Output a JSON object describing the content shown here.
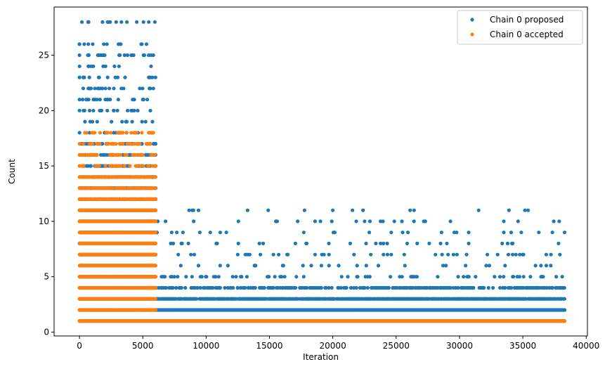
{
  "chart_data": {
    "type": "scatter",
    "title": "",
    "xlabel": "Iteration",
    "ylabel": "Count",
    "xlim": [
      -2000,
      40100
    ],
    "ylim": [
      -0.35,
      29.35
    ],
    "xticks": [
      0,
      5000,
      10000,
      15000,
      20000,
      25000,
      30000,
      35000,
      40000
    ],
    "yticks": [
      0,
      5,
      10,
      15,
      20,
      25
    ],
    "legend_position": "top-right",
    "grid": false,
    "series": [
      {
        "name": "Chain 0 proposed",
        "color": "#1f77b4",
        "description_levels": [
          {
            "x_range": [
              0,
              6000
            ],
            "y_values": [
              1,
              2,
              3,
              4,
              5,
              6,
              7,
              8,
              9,
              10,
              11,
              12,
              13,
              14,
              15,
              16,
              17,
              18,
              19,
              20,
              21,
              22,
              23,
              24,
              25,
              26,
              28
            ]
          },
          {
            "x_range": [
              6000,
              38300
            ],
            "y_values": [
              1,
              2,
              3,
              4,
              5,
              6,
              7,
              8,
              9,
              10,
              11
            ]
          }
        ],
        "points": [
          [
            700,
            28
          ],
          [
            0,
            26
          ],
          [
            700,
            26
          ],
          [
            0,
            25
          ],
          [
            700,
            24
          ],
          [
            0,
            23
          ],
          [
            300,
            23
          ],
          [
            3600,
            23
          ],
          [
            5600,
            23
          ],
          [
            300,
            22
          ],
          [
            700,
            22
          ],
          [
            900,
            22
          ],
          [
            5600,
            22
          ],
          [
            0,
            21
          ],
          [
            2200,
            21
          ],
          [
            4200,
            21
          ],
          [
            5000,
            21
          ],
          [
            0,
            20
          ],
          [
            400,
            20
          ],
          [
            800,
            20
          ],
          [
            1600,
            20
          ],
          [
            2200,
            20
          ],
          [
            2700,
            20
          ],
          [
            3000,
            20
          ],
          [
            4200,
            20
          ],
          [
            4600,
            20
          ],
          [
            5600,
            20
          ],
          [
            9000,
            11
          ],
          [
            9400,
            11
          ],
          [
            18600,
            10
          ],
          [
            33500,
            10
          ],
          [
            9500,
            9
          ],
          [
            33500,
            9
          ],
          [
            8600,
            8
          ],
          [
            10800,
            8
          ],
          [
            14200,
            8
          ],
          [
            14500,
            8
          ],
          [
            23400,
            8
          ],
          [
            24000,
            8
          ],
          [
            24300,
            8
          ],
          [
            29000,
            8
          ],
          [
            33800,
            8
          ],
          [
            34200,
            8
          ],
          [
            7800,
            7
          ],
          [
            8800,
            7
          ],
          [
            13100,
            7
          ],
          [
            18600,
            7
          ],
          [
            19300,
            7
          ],
          [
            19700,
            7
          ],
          [
            23000,
            7
          ],
          [
            24000,
            7
          ],
          [
            28100,
            7
          ],
          [
            29100,
            7
          ],
          [
            29800,
            7
          ],
          [
            32200,
            7
          ],
          [
            34200,
            7
          ],
          [
            8000,
            6
          ],
          [
            9400,
            6
          ],
          [
            13900,
            6
          ],
          [
            16100,
            6
          ],
          [
            18300,
            6
          ],
          [
            19100,
            6
          ],
          [
            23600,
            6
          ],
          [
            28700,
            6
          ],
          [
            33600,
            6
          ],
          [
            36000,
            6
          ],
          [
            7200,
            5
          ],
          [
            10600,
            5
          ],
          [
            12100,
            5
          ],
          [
            16200,
            5
          ],
          [
            20700,
            5
          ],
          [
            26200,
            5
          ],
          [
            30600,
            5
          ],
          [
            35600,
            5
          ],
          [
            6500,
            4
          ],
          [
            8000,
            4
          ],
          [
            10500,
            4
          ],
          [
            12500,
            4
          ],
          [
            15300,
            4
          ],
          [
            17400,
            4
          ],
          [
            21000,
            4
          ],
          [
            23200,
            4
          ],
          [
            25600,
            4
          ],
          [
            27900,
            4
          ],
          [
            31900,
            4
          ],
          [
            37600,
            4
          ],
          [
            38100,
            4
          ],
          [
            6000,
            3
          ],
          [
            8000,
            3
          ],
          [
            10000,
            3
          ],
          [
            12000,
            3
          ],
          [
            14000,
            3
          ],
          [
            16000,
            3
          ],
          [
            18000,
            3
          ],
          [
            20000,
            3
          ],
          [
            22000,
            3
          ],
          [
            24000,
            3
          ],
          [
            26000,
            3
          ],
          [
            28000,
            3
          ],
          [
            30000,
            3
          ],
          [
            32000,
            3
          ],
          [
            34000,
            3
          ],
          [
            36000,
            3
          ],
          [
            38000,
            3
          ],
          [
            6000,
            2
          ],
          [
            10000,
            2
          ],
          [
            15000,
            2
          ],
          [
            20000,
            2
          ],
          [
            25000,
            2
          ],
          [
            30000,
            2
          ],
          [
            35000,
            2
          ],
          [
            38300,
            2
          ],
          [
            6000,
            1
          ],
          [
            10000,
            1
          ],
          [
            15000,
            1
          ],
          [
            20000,
            1
          ],
          [
            25000,
            1
          ],
          [
            30000,
            1
          ],
          [
            35000,
            1
          ],
          [
            38300,
            1
          ]
        ]
      },
      {
        "name": "Chain 0 accepted",
        "color": "#ff7f0e",
        "description_levels": [
          {
            "x_range": [
              0,
              6000
            ],
            "y_values": [
              1,
              2,
              3,
              4,
              5,
              6,
              7,
              8,
              9,
              10,
              11,
              12,
              13,
              14,
              15,
              16,
              17,
              18
            ]
          },
          {
            "x_range": [
              6000,
              38300
            ],
            "y_values": [
              1
            ]
          }
        ],
        "points": [
          [
            5500,
            18
          ],
          [
            300,
            17
          ],
          [
            800,
            17
          ],
          [
            1600,
            17
          ],
          [
            2900,
            17
          ],
          [
            4600,
            17
          ],
          [
            5600,
            17
          ],
          [
            0,
            16
          ],
          [
            2500,
            16
          ],
          [
            4200,
            16
          ],
          [
            5700,
            16
          ],
          [
            0,
            15
          ],
          [
            1500,
            15
          ],
          [
            3000,
            15
          ],
          [
            4500,
            15
          ],
          [
            0,
            14
          ],
          [
            3000,
            14
          ],
          [
            6000,
            14
          ],
          [
            0,
            13
          ],
          [
            3000,
            13
          ],
          [
            6000,
            13
          ],
          [
            0,
            12
          ],
          [
            6000,
            12
          ],
          [
            0,
            11
          ],
          [
            6000,
            11
          ],
          [
            0,
            10
          ],
          [
            6000,
            10
          ],
          [
            0,
            5
          ],
          [
            6000,
            5
          ],
          [
            0,
            4
          ],
          [
            6000,
            4
          ],
          [
            0,
            3
          ],
          [
            6000,
            3
          ],
          [
            0,
            2
          ],
          [
            6000,
            2
          ],
          [
            0,
            1
          ],
          [
            6000,
            1
          ],
          [
            38300,
            1
          ]
        ]
      }
    ]
  }
}
